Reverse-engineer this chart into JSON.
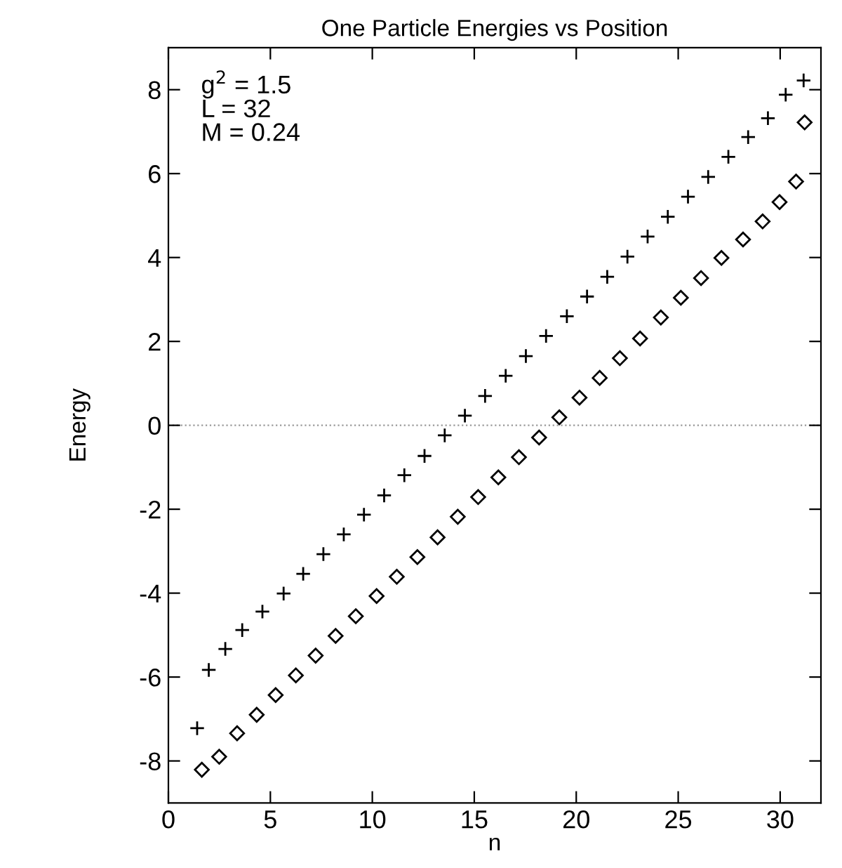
{
  "chart_data": {
    "type": "scatter",
    "title": "One Particle Energies vs Position",
    "xlabel": "n",
    "ylabel": "Energy",
    "annotations": [
      "g$^{2}$ = 1.5\nL = 32\nM = 0.24"
    ],
    "xlim": [
      0,
      32
    ],
    "ylim": [
      -9,
      9
    ],
    "xticks": [
      0,
      5,
      10,
      15,
      20,
      25,
      30
    ],
    "yticks": [
      -8,
      -6,
      -4,
      -2,
      0,
      2,
      4,
      6,
      8
    ],
    "grid": false,
    "ref_lines": [
      {
        "axis": "y",
        "value": 0,
        "color": "#999999",
        "line_style": "dotted"
      }
    ],
    "series": [
      {
        "color": "#000000",
        "marker": "cross",
        "x": [
          1.41,
          1.98,
          2.79,
          3.62,
          4.61,
          5.65,
          6.61,
          7.6,
          8.6,
          9.59,
          10.58,
          11.57,
          12.56,
          13.55,
          14.54,
          15.53,
          16.54,
          17.53,
          18.52,
          19.54,
          20.53,
          21.52,
          22.51,
          23.5,
          24.49,
          25.48,
          26.47,
          27.46,
          28.43,
          29.4,
          30.27,
          31.15
        ],
        "values": [
          -7.22,
          -5.83,
          -5.33,
          -4.88,
          -4.44,
          -4.01,
          -3.54,
          -3.07,
          -2.6,
          -2.13,
          -1.67,
          -1.19,
          -0.73,
          -0.24,
          0.23,
          0.7,
          1.18,
          1.65,
          2.13,
          2.6,
          3.07,
          3.54,
          4.02,
          4.5,
          4.97,
          5.45,
          5.92,
          6.4,
          6.87,
          7.32,
          7.88,
          8.22
        ]
      },
      {
        "color": "#000000",
        "marker": "diamond",
        "x": [
          1.64,
          2.49,
          3.37,
          4.33,
          5.26,
          6.25,
          7.22,
          8.2,
          9.19,
          10.21,
          11.2,
          12.21,
          13.2,
          14.19,
          15.19,
          16.18,
          17.19,
          18.18,
          19.17,
          20.16,
          21.15,
          22.14,
          23.13,
          24.15,
          25.13,
          26.12,
          27.12,
          28.18,
          29.14,
          29.97,
          30.78,
          31.2
        ],
        "values": [
          -8.21,
          -7.9,
          -7.34,
          -6.9,
          -6.43,
          -5.96,
          -5.49,
          -5.02,
          -4.55,
          -4.07,
          -3.61,
          -3.14,
          -2.67,
          -2.18,
          -1.71,
          -1.24,
          -0.76,
          -0.29,
          0.19,
          0.66,
          1.13,
          1.6,
          2.07,
          2.57,
          3.04,
          3.51,
          3.99,
          4.43,
          4.86,
          5.32,
          5.81,
          7.22
        ]
      }
    ]
  }
}
